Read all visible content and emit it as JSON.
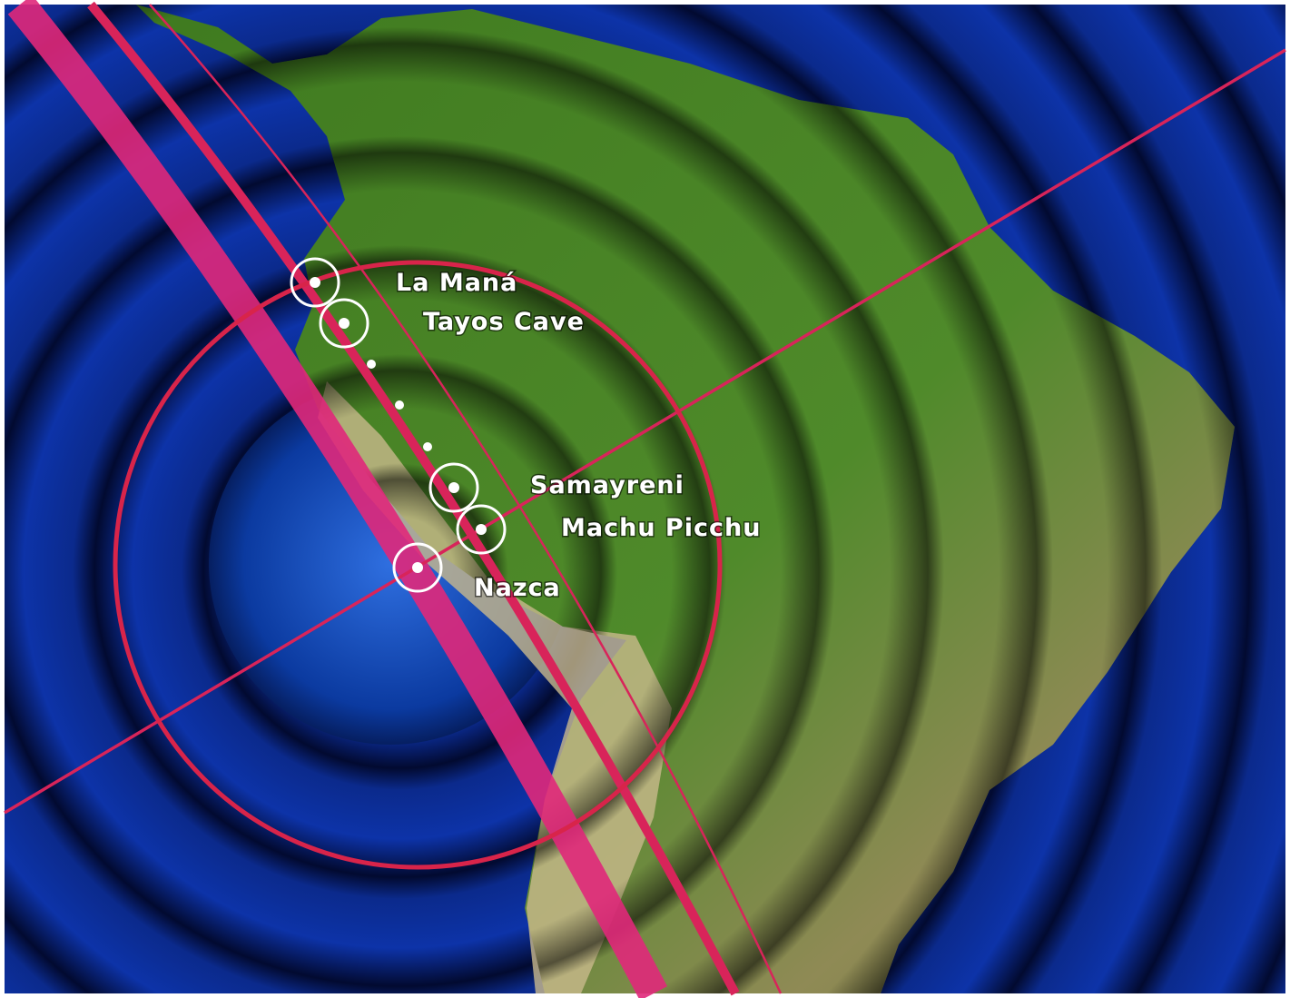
{
  "locations": [
    {
      "label": "La Maná"
    },
    {
      "label": "Tayos Cave"
    },
    {
      "label": "Samayreni"
    },
    {
      "label": "Machu Picchu"
    },
    {
      "label": "Nazca"
    }
  ]
}
